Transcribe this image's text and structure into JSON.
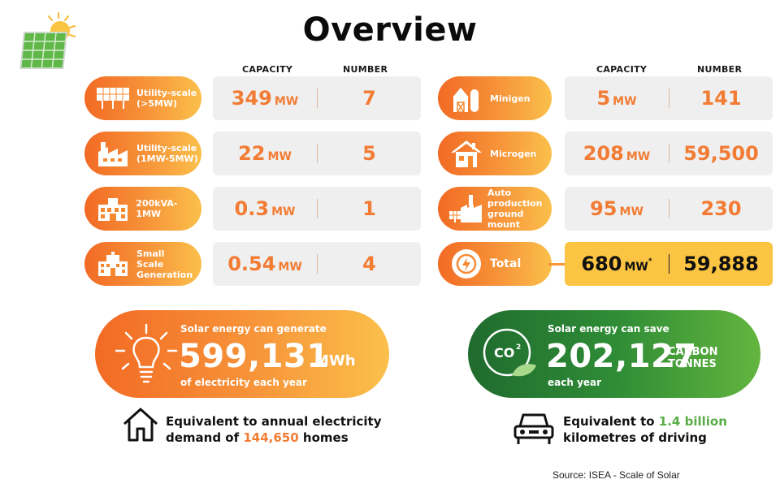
{
  "title": "Overview",
  "columns": {
    "capacity": "CAPACITY",
    "number": "NUMBER"
  },
  "rows": [
    {
      "label": "Utility-scale (>5MW)",
      "capacity": "349",
      "unit": "MW",
      "number": "7",
      "icon": "solar-panel-icon"
    },
    {
      "label": "Utility-scale (1MW-5MW)",
      "capacity": "22",
      "unit": "MW",
      "number": "5",
      "icon": "factory-icon"
    },
    {
      "label": "200kVA-1MW",
      "capacity": "0.3",
      "unit": "MW",
      "number": "1",
      "icon": "building-icon"
    },
    {
      "label": "Small Scale Generation",
      "capacity": "0.54",
      "unit": "MW",
      "number": "4",
      "icon": "office-building-icon"
    },
    {
      "label": "Minigen",
      "capacity": "5",
      "unit": "MW",
      "number": "141",
      "icon": "barn-icon"
    },
    {
      "label": "Microgen",
      "capacity": "208",
      "unit": "MW",
      "number": "59,500",
      "icon": "house-icon"
    },
    {
      "label": "Auto production ground mount",
      "capacity": "95",
      "unit": "MW",
      "number": "230",
      "icon": "factory-solar-icon"
    }
  ],
  "total": {
    "label": "Total",
    "capacity": "680",
    "unit": "MW",
    "footnote": "*",
    "number": "59,888",
    "icon": "lightning-icon"
  },
  "generate": {
    "line1": "Solar energy can generate",
    "value": "599,131",
    "unit": "MWh",
    "line2": "of electricity each year",
    "icon": "light-bulb-icon",
    "equiv_pre": "Equivalent to annual electricity",
    "equiv_mid": "demand of ",
    "equiv_value": "144,650",
    "equiv_post": " homes",
    "equiv_icon": "home-outline-icon"
  },
  "save": {
    "line1": "Solar energy can save",
    "value": "202,127",
    "unit_line1": "CARBON",
    "unit_line2": "TONNES",
    "line2": "each year",
    "icon": "co2-leaf-icon",
    "equiv_pre": "Equivalent to ",
    "equiv_value": "1.4 billion",
    "equiv_post": "kilometres of driving",
    "equiv_icon": "car-icon"
  },
  "source": "Source: ISEA - Scale of Solar",
  "colors": {
    "orange": "#f27c34",
    "yellow": "#fbc442",
    "green": "#2f8c36",
    "grey": "#efefef"
  }
}
